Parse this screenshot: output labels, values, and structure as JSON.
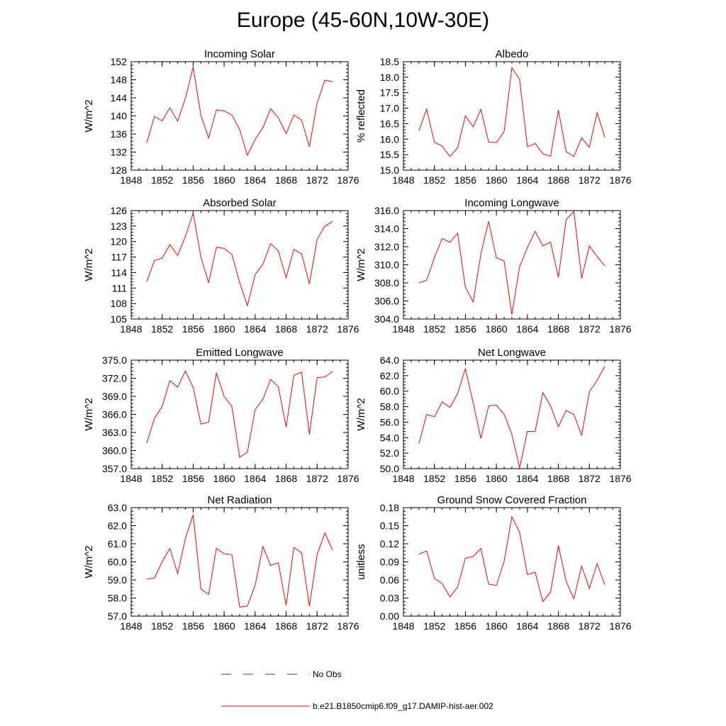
{
  "figure_title": "Europe (45-60N,10W-30E)",
  "colors": {
    "model": "#ff0000",
    "obs": "#3333cc",
    "axis": "#000000"
  },
  "legend": {
    "obs_label": "No Obs",
    "model_label": "b.e21.B1850cmip6.f09_g17.DAMIP-hist-aer.002"
  },
  "chart_data": [
    {
      "type": "line",
      "title": "Incoming Solar",
      "ylabel": "W/m^2",
      "xlim": [
        1848,
        1876
      ],
      "ylim": [
        128,
        152
      ],
      "xticks": [
        1848,
        1852,
        1856,
        1860,
        1864,
        1868,
        1872,
        1876
      ],
      "yticks": [
        128,
        132,
        136,
        140,
        144,
        148,
        152
      ],
      "ytick_labels": [
        "128",
        "132",
        "136",
        "140",
        "144",
        "148",
        "152"
      ],
      "grid": false,
      "x": [
        1850,
        1851,
        1852,
        1853,
        1854,
        1855,
        1856,
        1857,
        1858,
        1859,
        1860,
        1861,
        1862,
        1863,
        1864,
        1865,
        1866,
        1867,
        1868,
        1869,
        1870,
        1871,
        1872,
        1873,
        1874
      ],
      "series": [
        {
          "name": "b.e21.B1850cmip6.f09_g17.DAMIP-hist-aer.002",
          "values": [
            134.0,
            139.9,
            138.9,
            141.8,
            138.8,
            143.9,
            150.8,
            140.1,
            135.1,
            141.3,
            141.1,
            140.2,
            137.0,
            131.3,
            134.8,
            137.4,
            141.6,
            139.6,
            136.1,
            140.2,
            139.1,
            133.2,
            142.8,
            147.9,
            147.6
          ]
        }
      ]
    },
    {
      "type": "line",
      "title": "Albedo",
      "ylabel": "% reflected",
      "xlim": [
        1848,
        1876
      ],
      "ylim": [
        15.0,
        18.5
      ],
      "xticks": [
        1848,
        1852,
        1856,
        1860,
        1864,
        1868,
        1872,
        1876
      ],
      "yticks": [
        15.0,
        15.5,
        16.0,
        16.5,
        17.0,
        17.5,
        18.0,
        18.5
      ],
      "ytick_labels": [
        "15.0",
        "15.5",
        "16.0",
        "16.5",
        "17.0",
        "17.5",
        "18.0",
        "18.5"
      ],
      "grid": false,
      "x": [
        1850,
        1851,
        1852,
        1853,
        1854,
        1855,
        1856,
        1857,
        1858,
        1859,
        1860,
        1861,
        1862,
        1863,
        1864,
        1865,
        1866,
        1867,
        1868,
        1869,
        1870,
        1871,
        1872,
        1873,
        1874
      ],
      "series": [
        {
          "name": "b.e21.B1850cmip6.f09_g17.DAMIP-hist-aer.002",
          "values": [
            16.27,
            16.97,
            15.9,
            15.78,
            15.44,
            15.72,
            16.75,
            16.4,
            16.96,
            15.91,
            15.89,
            16.25,
            18.3,
            17.93,
            15.75,
            15.86,
            15.53,
            15.45,
            16.94,
            15.6,
            15.44,
            16.04,
            15.74,
            16.86,
            16.06
          ]
        }
      ]
    },
    {
      "type": "line",
      "title": "Absorbed Solar",
      "ylabel": "W/m^2",
      "xlim": [
        1848,
        1876
      ],
      "ylim": [
        105,
        126
      ],
      "xticks": [
        1848,
        1852,
        1856,
        1860,
        1864,
        1868,
        1872,
        1876
      ],
      "yticks": [
        105,
        108,
        111,
        114,
        117,
        120,
        123,
        126
      ],
      "ytick_labels": [
        "105",
        "108",
        "111",
        "114",
        "117",
        "120",
        "123",
        "126"
      ],
      "grid": false,
      "x": [
        1850,
        1851,
        1852,
        1853,
        1854,
        1855,
        1856,
        1857,
        1858,
        1859,
        1860,
        1861,
        1862,
        1863,
        1864,
        1865,
        1866,
        1867,
        1868,
        1869,
        1870,
        1871,
        1872,
        1873,
        1874
      ],
      "series": [
        {
          "name": "b.e21.B1850cmip6.f09_g17.DAMIP-hist-aer.002",
          "values": [
            112.2,
            116.3,
            116.8,
            119.4,
            117.3,
            121.0,
            125.5,
            117.0,
            112.0,
            118.9,
            118.7,
            117.5,
            112.1,
            107.6,
            113.6,
            115.6,
            119.6,
            118.2,
            113.0,
            118.5,
            117.6,
            111.8,
            120.4,
            123.0,
            123.9
          ]
        }
      ]
    },
    {
      "type": "line",
      "title": "Incoming Longwave",
      "ylabel": "W/m^2",
      "xlim": [
        1848,
        1876
      ],
      "ylim": [
        304.0,
        316.0
      ],
      "xticks": [
        1848,
        1852,
        1856,
        1860,
        1864,
        1868,
        1872,
        1876
      ],
      "yticks": [
        304,
        306,
        308,
        310,
        312,
        314,
        316
      ],
      "ytick_labels": [
        "304.0",
        "306.0",
        "308.0",
        "310.0",
        "312.0",
        "314.0",
        "316.0"
      ],
      "grid": false,
      "x": [
        1850,
        1851,
        1852,
        1853,
        1854,
        1855,
        1856,
        1857,
        1858,
        1859,
        1860,
        1861,
        1862,
        1863,
        1864,
        1865,
        1866,
        1867,
        1868,
        1869,
        1870,
        1871,
        1872,
        1873,
        1874
      ],
      "series": [
        {
          "name": "b.e21.B1850cmip6.f09_g17.DAMIP-hist-aer.002",
          "values": [
            308.0,
            308.3,
            310.8,
            312.9,
            312.5,
            313.5,
            307.5,
            305.9,
            311.2,
            314.8,
            310.8,
            310.4,
            304.5,
            309.8,
            311.9,
            313.7,
            312.1,
            312.5,
            308.6,
            315.0,
            315.9,
            308.5,
            312.1,
            310.9,
            309.9
          ]
        }
      ]
    },
    {
      "type": "line",
      "title": "Emitted Longwave",
      "ylabel": "W/m^2",
      "xlim": [
        1848,
        1876
      ],
      "ylim": [
        357.0,
        375.0
      ],
      "xticks": [
        1848,
        1852,
        1856,
        1860,
        1864,
        1868,
        1872,
        1876
      ],
      "yticks": [
        357,
        360,
        363,
        366,
        369,
        372,
        375
      ],
      "ytick_labels": [
        "357.0",
        "360.0",
        "363.0",
        "366.0",
        "369.0",
        "372.0",
        "375.0"
      ],
      "grid": false,
      "x": [
        1850,
        1851,
        1852,
        1853,
        1854,
        1855,
        1856,
        1857,
        1858,
        1859,
        1860,
        1861,
        1862,
        1863,
        1864,
        1865,
        1866,
        1867,
        1868,
        1869,
        1870,
        1871,
        1872,
        1873,
        1874
      ],
      "series": [
        {
          "name": "b.e21.B1850cmip6.f09_g17.DAMIP-hist-aer.002",
          "values": [
            361.2,
            365.3,
            367.3,
            371.6,
            370.5,
            373.2,
            370.5,
            364.4,
            364.7,
            372.9,
            369.0,
            367.3,
            358.9,
            359.7,
            366.8,
            368.5,
            371.8,
            370.6,
            363.9,
            372.5,
            373.0,
            362.7,
            372.1,
            372.2,
            373.1
          ]
        }
      ]
    },
    {
      "type": "line",
      "title": "Net Longwave",
      "ylabel": "W/m^2",
      "xlim": [
        1848,
        1876
      ],
      "ylim": [
        50.0,
        64.0
      ],
      "xticks": [
        1848,
        1852,
        1856,
        1860,
        1864,
        1868,
        1872,
        1876
      ],
      "yticks": [
        50,
        52,
        54,
        56,
        58,
        60,
        62,
        64
      ],
      "ytick_labels": [
        "50.0",
        "52.0",
        "54.0",
        "56.0",
        "58.0",
        "60.0",
        "62.0",
        "64.0"
      ],
      "grid": false,
      "x": [
        1850,
        1851,
        1852,
        1853,
        1854,
        1855,
        1856,
        1857,
        1858,
        1859,
        1860,
        1861,
        1862,
        1863,
        1864,
        1865,
        1866,
        1867,
        1868,
        1869,
        1870,
        1871,
        1872,
        1873,
        1874
      ],
      "series": [
        {
          "name": "b.e21.B1850cmip6.f09_g17.DAMIP-hist-aer.002",
          "values": [
            53.2,
            57.0,
            56.7,
            58.6,
            57.9,
            59.7,
            62.9,
            58.5,
            53.9,
            58.1,
            58.2,
            57.0,
            54.4,
            50.1,
            54.8,
            54.8,
            59.8,
            58.1,
            55.4,
            57.5,
            57.0,
            54.3,
            59.9,
            61.4,
            63.2
          ]
        }
      ]
    },
    {
      "type": "line",
      "title": "Net Radiation",
      "ylabel": "W/m^2",
      "xlim": [
        1848,
        1876
      ],
      "ylim": [
        57.0,
        63.0
      ],
      "xticks": [
        1848,
        1852,
        1856,
        1860,
        1864,
        1868,
        1872,
        1876
      ],
      "yticks": [
        57,
        58,
        59,
        60,
        61,
        62,
        63
      ],
      "ytick_labels": [
        "57.0",
        "58.0",
        "59.0",
        "60.0",
        "61.0",
        "62.0",
        "63.0"
      ],
      "grid": false,
      "x": [
        1850,
        1851,
        1852,
        1853,
        1854,
        1855,
        1856,
        1857,
        1858,
        1859,
        1860,
        1861,
        1862,
        1863,
        1864,
        1865,
        1866,
        1867,
        1868,
        1869,
        1870,
        1871,
        1872,
        1873,
        1874
      ],
      "series": [
        {
          "name": "b.e21.B1850cmip6.f09_g17.DAMIP-hist-aer.002",
          "values": [
            59.05,
            59.1,
            60.0,
            60.75,
            59.35,
            61.3,
            62.6,
            58.5,
            58.2,
            60.75,
            60.45,
            60.4,
            57.5,
            57.55,
            58.7,
            60.85,
            59.8,
            59.95,
            57.6,
            60.8,
            60.5,
            57.55,
            60.4,
            61.6,
            60.65
          ]
        }
      ]
    },
    {
      "type": "line",
      "title": "Ground Snow Covered Fraction",
      "ylabel": "unitless",
      "xlim": [
        1848,
        1876
      ],
      "ylim": [
        0.0,
        0.18
      ],
      "xticks": [
        1848,
        1852,
        1856,
        1860,
        1864,
        1868,
        1872,
        1876
      ],
      "yticks": [
        0,
        0.03,
        0.06,
        0.09,
        0.12,
        0.15,
        0.18
      ],
      "ytick_labels": [
        "0.00",
        "0.03",
        "0.06",
        "0.09",
        "0.12",
        "0.15",
        "0.18"
      ],
      "grid": false,
      "x": [
        1850,
        1851,
        1852,
        1853,
        1854,
        1855,
        1856,
        1857,
        1858,
        1859,
        1860,
        1861,
        1862,
        1863,
        1864,
        1865,
        1866,
        1867,
        1868,
        1869,
        1870,
        1871,
        1872,
        1873,
        1874
      ],
      "series": [
        {
          "name": "b.e21.B1850cmip6.f09_g17.DAMIP-hist-aer.002",
          "values": [
            0.103,
            0.108,
            0.063,
            0.054,
            0.032,
            0.048,
            0.096,
            0.099,
            0.112,
            0.053,
            0.051,
            0.091,
            0.165,
            0.139,
            0.069,
            0.073,
            0.024,
            0.04,
            0.117,
            0.058,
            0.029,
            0.083,
            0.046,
            0.087,
            0.052
          ]
        }
      ]
    }
  ]
}
